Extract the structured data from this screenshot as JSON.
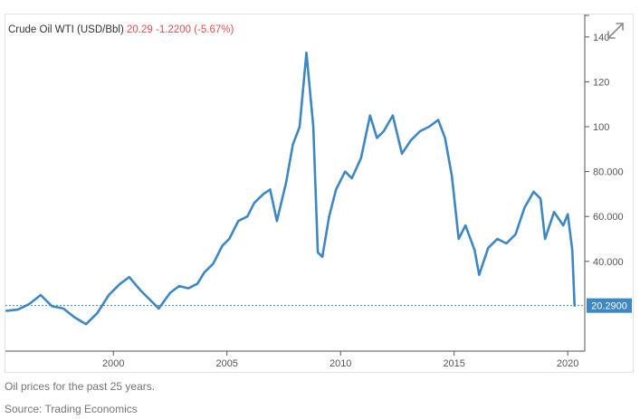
{
  "header": {
    "instrument": "Crude Oil WTI (USD/Bbl)",
    "price": "20.29",
    "change": "-1.2200",
    "change_pct": "(-5.67%)"
  },
  "captions": {
    "description": "Oil prices for the past 25 years.",
    "source": "Source: Trading Economics"
  },
  "icons": {
    "expand": "expand-arrows-icon"
  },
  "colors": {
    "line": "#3d87c4",
    "negative": "#d9534f",
    "last_badge": "#3d87c4"
  },
  "chart_data": {
    "type": "line",
    "title": "",
    "xlabel": "",
    "ylabel": "",
    "x_ticks": [
      "2000",
      "2005",
      "2010",
      "2015",
      "2020"
    ],
    "y_ticks": [
      "40.000",
      "60.000",
      "80.000",
      "100",
      "120",
      "140"
    ],
    "xlim": [
      1995.25,
      2020.75
    ],
    "ylim": [
      0,
      150
    ],
    "last_value_label": "20.2900",
    "last_value": 20.29,
    "series": [
      {
        "x": [
          1995.3,
          1995.8,
          1996.3,
          1996.8,
          1997.3,
          1997.8,
          1998.3,
          1998.8,
          1999.3,
          1999.8,
          2000.3,
          2000.7,
          2001.2,
          2001.6,
          2002.0,
          2002.5,
          2002.9,
          2003.3,
          2003.7,
          2004.0,
          2004.4,
          2004.8,
          2005.1,
          2005.5,
          2005.9,
          2006.2,
          2006.6,
          2006.9,
          2007.2,
          2007.6,
          2007.9,
          2008.2,
          2008.5,
          2008.8,
          2009.0,
          2009.2,
          2009.5,
          2009.8,
          2010.2,
          2010.5,
          2010.9,
          2011.3,
          2011.6,
          2011.9,
          2012.3,
          2012.7,
          2013.1,
          2013.5,
          2013.9,
          2014.3,
          2014.6,
          2014.9,
          2015.2,
          2015.5,
          2015.9,
          2016.1,
          2016.5,
          2016.9,
          2017.3,
          2017.7,
          2018.1,
          2018.5,
          2018.8,
          2019.0,
          2019.4,
          2019.8,
          2020.0,
          2020.2,
          2020.3
        ],
        "y": [
          18,
          18.5,
          21,
          25,
          20,
          19,
          15,
          12,
          17,
          25,
          30,
          33,
          27,
          23,
          19,
          26,
          29,
          28,
          30,
          35,
          39,
          47,
          50,
          58,
          60,
          66,
          70,
          72,
          58,
          75,
          92,
          100,
          133,
          100,
          44,
          42,
          60,
          72,
          80,
          77,
          86,
          105,
          95,
          98,
          105,
          88,
          94,
          98,
          100,
          103,
          95,
          78,
          50,
          56,
          45,
          34,
          46,
          50,
          48,
          52,
          64,
          71,
          68,
          50,
          62,
          56,
          61,
          45,
          20.29
        ]
      }
    ]
  }
}
